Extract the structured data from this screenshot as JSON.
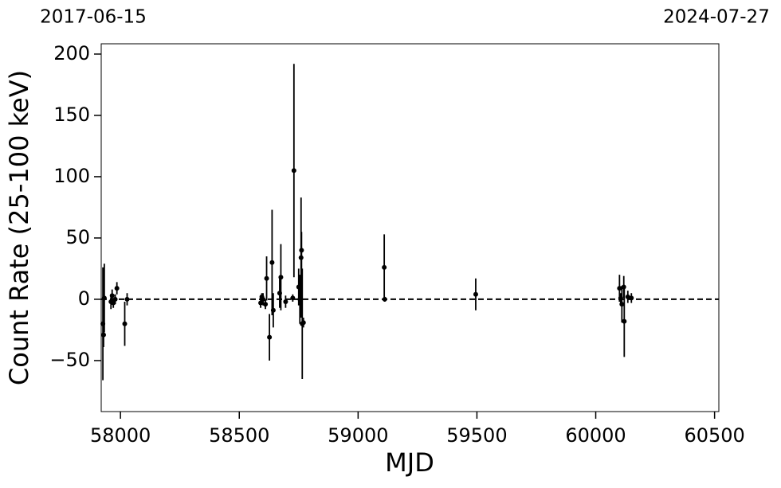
{
  "chart_data": {
    "type": "errorbar",
    "xlabel": "MJD",
    "ylabel": "Count Rate (25-100 keV)",
    "xlim": [
      57919,
      60518
    ],
    "ylim": [
      -91.6,
      208.4
    ],
    "xticks": [
      58000,
      58500,
      59000,
      59500,
      60000,
      60500
    ],
    "yticks": [
      {
        "value": -50,
        "label": "−50"
      },
      0,
      50,
      100,
      150,
      200
    ],
    "x2ticks": [
      {
        "value": 57919,
        "label": "2017-06-15"
      },
      {
        "value": 60518,
        "label": "2024-07-27"
      }
    ],
    "reference_line": 0,
    "series": [
      {
        "color": "#000000",
        "x": [
          57926,
          57929,
          57932,
          57960,
          57965,
          57970,
          57978,
          57985,
          58018,
          58028,
          58590,
          58595,
          58600,
          58610,
          58615,
          58627,
          58638,
          58643,
          58670,
          58675,
          58695,
          58725,
          58730,
          58750,
          58755,
          58760,
          58762,
          58765,
          58770,
          59110,
          59112,
          59495,
          60100,
          60105,
          60110,
          60118,
          60120,
          60135,
          60150
        ],
        "values": [
          -20,
          -29,
          1,
          -2,
          3,
          -3,
          0,
          9,
          -20,
          0,
          -3,
          2,
          0,
          -4,
          17,
          -31,
          30,
          -9,
          5,
          18,
          -2,
          1,
          105,
          10,
          0,
          34,
          40,
          -20,
          -19,
          26,
          0,
          4,
          9,
          1,
          -4,
          10,
          -18,
          2,
          1
        ],
        "errors": [
          46,
          10,
          28,
          6,
          5,
          4,
          4,
          5,
          18,
          5,
          4,
          3,
          5,
          4,
          18,
          19,
          43,
          14,
          12,
          27,
          5,
          3,
          87,
          15,
          20,
          49,
          15,
          45,
          4,
          27,
          2,
          13,
          11,
          4,
          15,
          9,
          29,
          5,
          4
        ]
      }
    ]
  }
}
